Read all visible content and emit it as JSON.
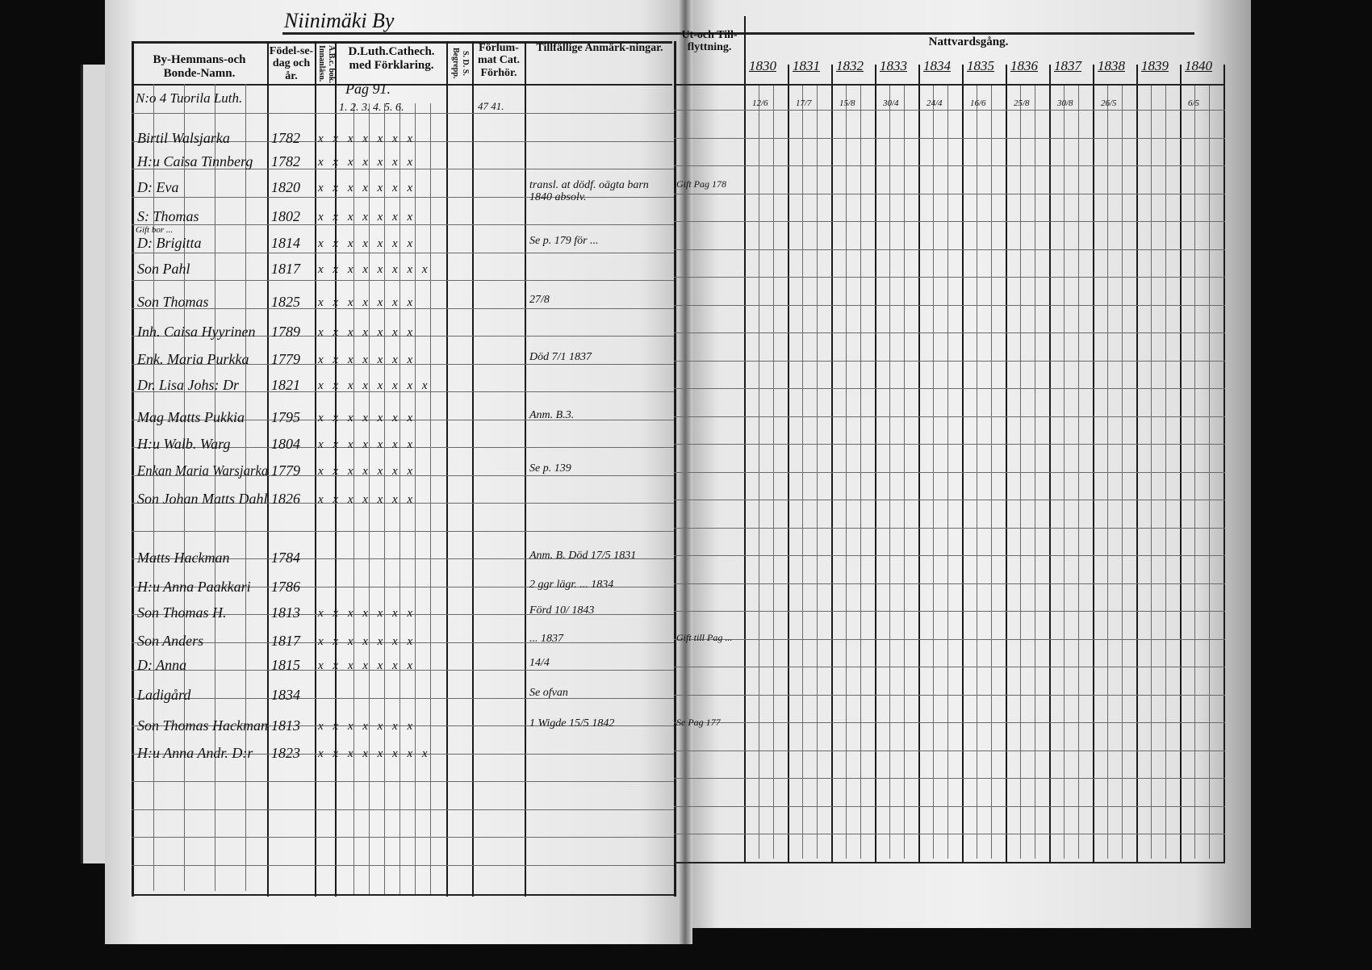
{
  "village_title": "Niinimäki By",
  "left_headers": {
    "names": "By-Hemmans-och Bonde-Namn.",
    "birth": "Födel-se-dag och år.",
    "abc": "A.B.c. bok. Innanläsn.",
    "catechism": "D.Luth.Cathech. med Förklaring.",
    "sds": "S. D. S. Begrepp.",
    "forhor": "Förlum-mat Cat. Förhör.",
    "remarks": "Tillfällige Anmärk-ningar."
  },
  "right_headers": {
    "moving": "Ut-och Till-flyttning.",
    "communion": "Nattvardsgång.",
    "years": [
      "1830",
      "1831",
      "1832",
      "1833",
      "1834",
      "1835",
      "1836",
      "1837",
      "1838",
      "1839",
      "1840"
    ]
  },
  "farm_heading": "N:o 4 Tuorila Luth.",
  "page_ref": "Pag 91.",
  "catechism_numbers": "1. 2. 3. 4. 5. 6.",
  "forhor_first": "47 41.",
  "rows": [
    {
      "name": "Birtil Walsjarka",
      "year": "1782",
      "marks": "x x x x x x x"
    },
    {
      "name": "H:u Caisa Tinnberg",
      "year": "1782",
      "marks": "x x x x x x x"
    },
    {
      "name": "D: Eva",
      "year": "1820",
      "marks": "x x x x x x x",
      "remark": "transl. at dödf. oägta barn 1840 absolv.",
      "moving": "Gift Pag 178"
    },
    {
      "name": "S: Thomas",
      "year": "1802",
      "marks": "x x x x x x x",
      "note": "Gift bor ..."
    },
    {
      "name": "D: Brigitta",
      "year": "1814",
      "marks": "x x x x x x x",
      "remark": "Se p. 179 för ..."
    },
    {
      "name": "Son Pahl",
      "year": "1817",
      "marks": "x x x x x x x x"
    },
    {
      "name": "Son Thomas",
      "year": "1825",
      "marks": "x x x x x x x",
      "remark": "27/8"
    },
    {
      "name": "Inh. Caisa Hyyrinen",
      "year": "1789",
      "marks": "x x x x x x x"
    },
    {
      "name": "Enk. Maria Purkka",
      "year": "1779",
      "marks": "x x x x x x x",
      "remark": "Död 7/1 1837"
    },
    {
      "name": "Dr. Lisa Johs: Dr",
      "year": "1821",
      "marks": "x x x x x x x x"
    },
    {
      "name": "Mag Matts Pukkia",
      "year": "1795",
      "marks": "x x x x x x x",
      "remark": "Anm. B.3."
    },
    {
      "name": "H:u Walb. Warg",
      "year": "1804",
      "marks": "x x x x x x x"
    },
    {
      "name": "Enkan Maria Warsjarka",
      "year": "1779",
      "marks": "x x x x x x x",
      "remark": "Se p. 139"
    },
    {
      "name": "Son Johan Matts Dahl",
      "year": "1826",
      "marks": "x x x x x x x"
    },
    {
      "name": "Matts Hackman",
      "year": "1784",
      "marks": "",
      "remark": "Anm. B. Död 17/5 1831"
    },
    {
      "name": "H:u Anna Paakkari",
      "year": "1786",
      "marks": "",
      "remark": "2 ggr lägr. ... 1834"
    },
    {
      "name": "Son Thomas H.",
      "year": "1813",
      "marks": "x x x x x x x",
      "remark": "Förd 10/ 1843"
    },
    {
      "name": "Son Anders",
      "year": "1817",
      "marks": "x x x x x x x",
      "remark": "... 1837",
      "moving": "Gift till Pag ..."
    },
    {
      "name": "D: Anna",
      "year": "1815",
      "marks": "x x x x x x x",
      "remark": "14/4"
    },
    {
      "name": "Ladigård",
      "year": "1834",
      "marks": "",
      "remark": "Se ofvan"
    },
    {
      "name": "Son Thomas Hackman",
      "year": "1813",
      "marks": "x x x x x x x",
      "remark": "1 Wigde 15/5 1842",
      "moving": "Se Pag 177"
    },
    {
      "name": "H:u Anna Andr. D:r",
      "year": "1823",
      "marks": "x x x x x x x x"
    }
  ],
  "first_row_communion": [
    "12/6",
    "17/7",
    "15/8",
    "30/4",
    "24/4",
    "16/6",
    "25/8",
    "30/8",
    "26/5",
    "",
    "6/5"
  ]
}
